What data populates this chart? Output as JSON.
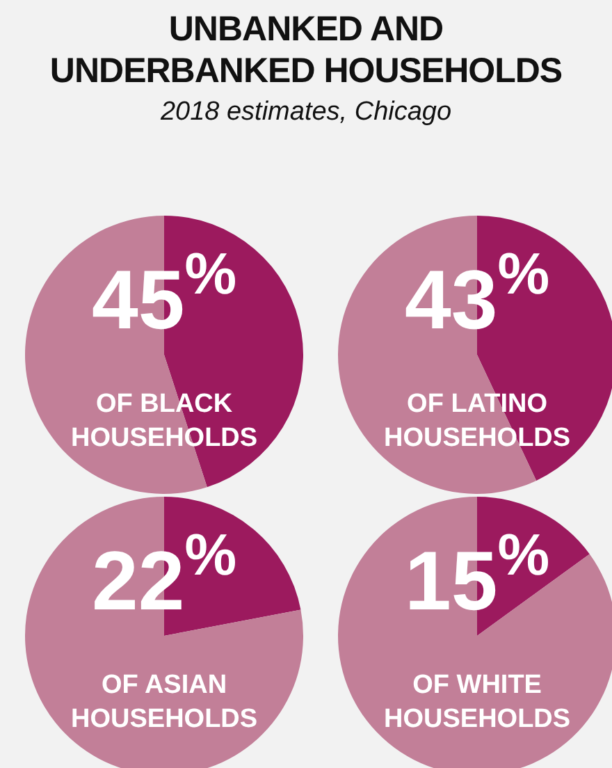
{
  "chart_data": [
    {
      "type": "other",
      "title": "UNBANKED AND\nUNDERBANKED HOUSEHOLDS",
      "subtitle": "2018 estimates, Chicago"
    },
    {
      "type": "pie",
      "categories": [
        null,
        null
      ],
      "values": [
        45,
        55
      ],
      "colors": [
        "#9c1a5e",
        "#c27f98"
      ],
      "value_labels": [
        "45$^{%}$",
        null
      ],
      "annotations": [
        "OF BLACK\nHOUSEHOLDS"
      ]
    },
    {
      "type": "pie",
      "categories": [
        null,
        null
      ],
      "values": [
        43,
        57
      ],
      "colors": [
        "#9c1a5e",
        "#c27f98"
      ],
      "value_labels": [
        "43$^{%}$",
        null
      ],
      "annotations": [
        "OF LATINO\nHOUSEHOLDS"
      ]
    },
    {
      "type": "pie",
      "categories": [
        null,
        null
      ],
      "values": [
        22,
        78
      ],
      "colors": [
        "#9c1a5e",
        "#c27f98"
      ],
      "value_labels": [
        "22$^{%}$",
        null
      ],
      "annotations": [
        "OF ASIAN\nHOUSEHOLDS"
      ]
    },
    {
      "type": "pie",
      "categories": [
        null,
        null
      ],
      "values": [
        15,
        85
      ],
      "colors": [
        "#9c1a5e",
        "#c27f98"
      ],
      "value_labels": [
        "15$^{%}$",
        null
      ],
      "annotations": [
        "OF WHITE\nHOUSEHOLDS"
      ]
    }
  ]
}
